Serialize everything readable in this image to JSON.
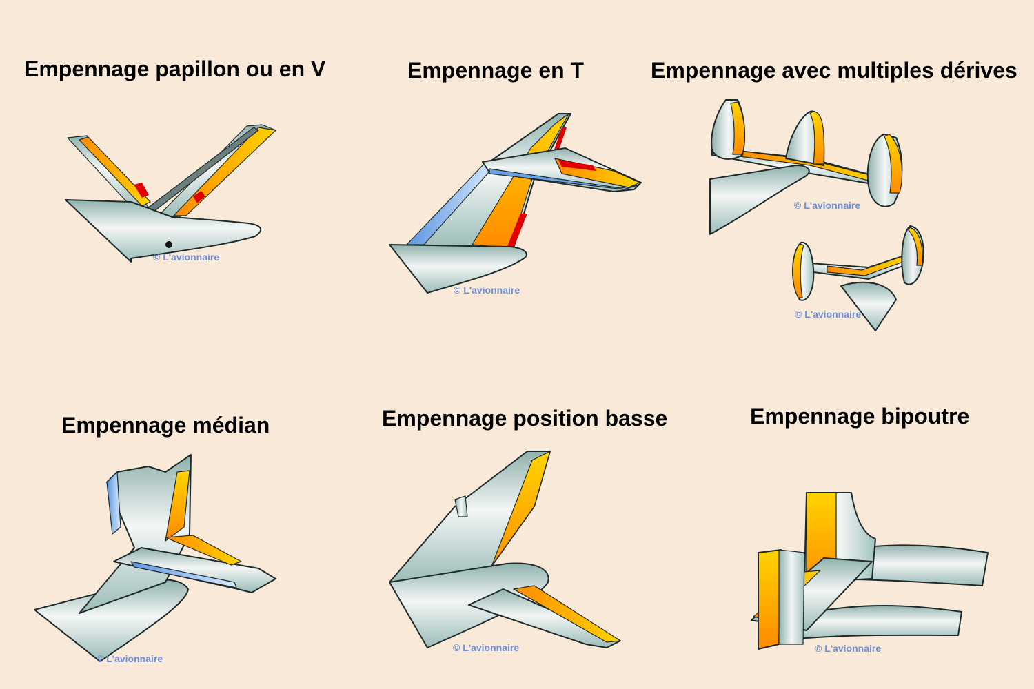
{
  "palette": {
    "background": "#f9e9d9",
    "metal": "#a9c7c3",
    "highlight": "#f3f6f5",
    "orange": "#ff9a00",
    "yellow": "#ffd400",
    "red": "#e00000",
    "blue": "#6aa2e6",
    "credit": "#6d8fd6"
  },
  "panels": [
    {
      "id": "v-tail",
      "title": "Empennage papillon ou en V",
      "credit": "© L'avionnaire"
    },
    {
      "id": "t-tail",
      "title": "Empennage en T",
      "credit": "© L'avionnaire"
    },
    {
      "id": "multi-fin",
      "title": "Empennage avec multiples dérives",
      "credits": [
        "© L'avionnaire",
        "© L'avionnaire"
      ]
    },
    {
      "id": "cruciform",
      "title": "Empennage médian",
      "credit": "© L'avionnaire"
    },
    {
      "id": "low-tail",
      "title": "Empennage position basse",
      "credit": "© L'avionnaire"
    },
    {
      "id": "twin-boom",
      "title": "Empennage bipoutre",
      "credit": "© L'avionnaire"
    }
  ]
}
